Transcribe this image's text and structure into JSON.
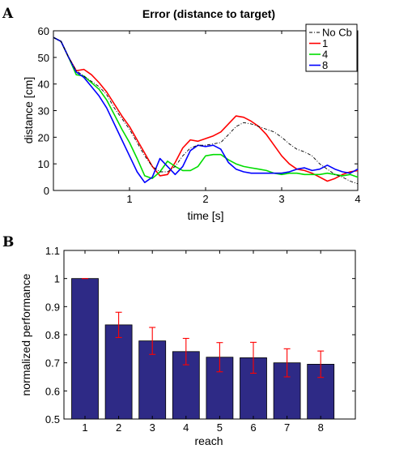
{
  "panels": {
    "a": "A",
    "b": "B"
  },
  "colors": {
    "no_cb": "#000000",
    "s1": "#ff0000",
    "s4": "#00dd00",
    "s8": "#0000ff",
    "bar": "#2e2a86",
    "err": "#ff0000"
  },
  "chart_data": [
    {
      "type": "line",
      "title": "Error (distance to target)",
      "xlabel": "time [s]",
      "ylabel": "distance [cm]",
      "xlim": [
        0,
        4
      ],
      "ylim": [
        0,
        60
      ],
      "xticks": [
        1,
        2,
        3,
        4
      ],
      "yticks": [
        0,
        10,
        20,
        30,
        40,
        50,
        60
      ],
      "grid": false,
      "legend_position": "top-right",
      "series": [
        {
          "name": "No Cb",
          "color": "#000000",
          "style": "dashdot",
          "x": [
            0,
            0.1,
            0.2,
            0.3,
            0.4,
            0.5,
            0.6,
            0.7,
            0.8,
            0.9,
            1.0,
            1.1,
            1.2,
            1.3,
            1.4,
            1.5,
            1.6,
            1.7,
            1.8,
            1.9,
            2.0,
            2.1,
            2.2,
            2.3,
            2.4,
            2.5,
            2.6,
            2.7,
            2.8,
            2.9,
            3.0,
            3.1,
            3.2,
            3.3,
            3.4,
            3.5,
            3.6,
            3.7,
            3.8,
            3.9,
            4.0
          ],
          "y": [
            57.5,
            56,
            50,
            45,
            43,
            41,
            39,
            36,
            31,
            27,
            23,
            18,
            13,
            9,
            7,
            7,
            9,
            13,
            16,
            17,
            17,
            17.5,
            18,
            21,
            24,
            25.5,
            25,
            24,
            23,
            22,
            20,
            17.5,
            15.5,
            14.5,
            13,
            10,
            8,
            6,
            5,
            3.5,
            2.5
          ]
        },
        {
          "name": "1",
          "color": "#ff0000",
          "style": "solid",
          "x": [
            0,
            0.1,
            0.2,
            0.3,
            0.4,
            0.5,
            0.6,
            0.7,
            0.8,
            0.9,
            1.0,
            1.1,
            1.2,
            1.3,
            1.4,
            1.5,
            1.6,
            1.7,
            1.8,
            1.9,
            2.0,
            2.1,
            2.2,
            2.3,
            2.4,
            2.5,
            2.6,
            2.7,
            2.8,
            2.9,
            3.0,
            3.1,
            3.2,
            3.3,
            3.4,
            3.5,
            3.6,
            3.7,
            3.8,
            3.9,
            4.0
          ],
          "y": [
            57.5,
            56,
            50,
            45,
            45.5,
            43.5,
            40.5,
            37,
            32.5,
            28,
            24,
            19,
            14,
            9,
            5.5,
            6,
            10.5,
            16,
            19,
            18.5,
            19.5,
            20.5,
            22,
            25,
            28,
            27.5,
            26,
            24,
            21,
            17,
            13,
            10,
            8,
            7.5,
            6.5,
            5,
            3.5,
            4.5,
            6,
            7,
            7.5
          ]
        },
        {
          "name": "4",
          "color": "#00dd00",
          "style": "solid",
          "x": [
            0,
            0.1,
            0.2,
            0.3,
            0.4,
            0.5,
            0.6,
            0.7,
            0.8,
            0.9,
            1.0,
            1.1,
            1.2,
            1.3,
            1.4,
            1.5,
            1.6,
            1.7,
            1.8,
            1.9,
            2.0,
            2.1,
            2.2,
            2.3,
            2.4,
            2.5,
            2.6,
            2.7,
            2.8,
            2.9,
            3.0,
            3.1,
            3.2,
            3.3,
            3.4,
            3.5,
            3.6,
            3.7,
            3.8,
            3.9,
            4.0
          ],
          "y": [
            57.5,
            56,
            50,
            43.5,
            43,
            40.5,
            38,
            34,
            28.5,
            23,
            18,
            12,
            5.5,
            4.5,
            7,
            11,
            9,
            7.5,
            7.5,
            9,
            13,
            13.5,
            13.5,
            11.5,
            10,
            9,
            8.5,
            8,
            7.5,
            6.5,
            6,
            6.5,
            6.5,
            6,
            6,
            6,
            6.5,
            6,
            5.5,
            6,
            5
          ]
        },
        {
          "name": "8",
          "color": "#0000ff",
          "style": "solid",
          "x": [
            0,
            0.1,
            0.2,
            0.3,
            0.4,
            0.5,
            0.6,
            0.7,
            0.8,
            0.9,
            1.0,
            1.1,
            1.2,
            1.3,
            1.4,
            1.5,
            1.6,
            1.7,
            1.8,
            1.9,
            2.0,
            2.1,
            2.2,
            2.3,
            2.4,
            2.5,
            2.6,
            2.7,
            2.8,
            2.9,
            3.0,
            3.1,
            3.2,
            3.3,
            3.4,
            3.5,
            3.6,
            3.7,
            3.8,
            3.9,
            4.0
          ],
          "y": [
            57.5,
            56,
            50,
            44.5,
            42.5,
            39,
            35.5,
            31,
            25,
            19,
            13,
            7,
            3,
            5,
            12,
            9,
            6,
            9,
            15,
            17,
            16.5,
            17,
            15.5,
            10.5,
            8,
            7,
            6.5,
            6.5,
            6.5,
            6.5,
            6.5,
            7,
            8,
            8.5,
            7.5,
            8,
            9.5,
            8,
            7,
            6.5,
            8
          ]
        }
      ]
    },
    {
      "type": "bar",
      "title": "",
      "xlabel": "reach",
      "ylabel": "normalized performance",
      "ylim": [
        0.5,
        1.1
      ],
      "yticks": [
        0.5,
        0.6,
        0.7,
        0.8,
        0.9,
        1,
        1.1
      ],
      "categories": [
        "1",
        "2",
        "3",
        "4",
        "5",
        "6",
        "7",
        "8"
      ],
      "values": [
        1.0,
        0.835,
        0.778,
        0.74,
        0.72,
        0.718,
        0.7,
        0.695
      ],
      "errors": [
        0.0,
        0.045,
        0.048,
        0.047,
        0.052,
        0.055,
        0.05,
        0.047
      ],
      "grid": false
    }
  ]
}
